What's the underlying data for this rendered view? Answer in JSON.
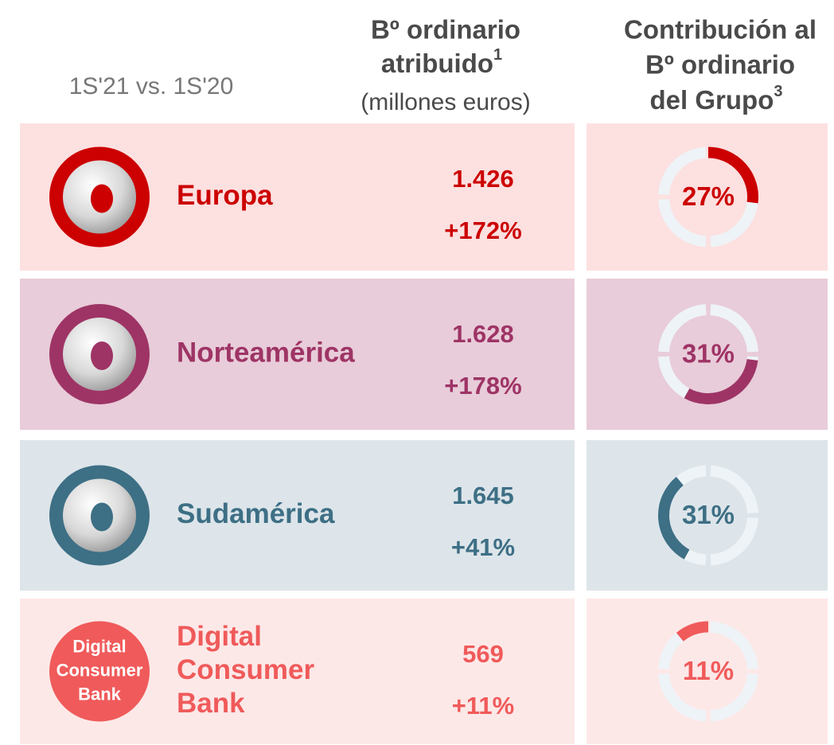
{
  "header": {
    "period": "1S'21 vs. 1S'20",
    "col1": {
      "line1": "Bº ordinario",
      "line2": "atribuido",
      "sup": "1",
      "unit": "(millones euros)"
    },
    "col2": {
      "line1": "Contribución al",
      "line2": "Bº ordinario",
      "line3": "del Grupo",
      "sup": "3"
    }
  },
  "rows": [
    {
      "name": [
        "Europa"
      ],
      "profit": "1.426",
      "change": "+172%",
      "contribution": {
        "value": 27,
        "label": "27%"
      },
      "color": "#cc0000",
      "background": "#fde0e0"
    },
    {
      "name": [
        "Norteamérica"
      ],
      "profit": "1.628",
      "change": "+178%",
      "contribution": {
        "value": 31,
        "label": "31%"
      },
      "color": "#9e3465",
      "background": "#e8ccd9"
    },
    {
      "name": [
        "Sudamérica"
      ],
      "profit": "1.645",
      "change": "+41%",
      "contribution": {
        "value": 31,
        "label": "31%"
      },
      "color": "#3d6f85",
      "background": "#dde5ea"
    },
    {
      "name": [
        "Digital",
        "Consumer",
        "Bank"
      ],
      "icon_text": [
        "Digital",
        "Consumer",
        "Bank"
      ],
      "profit": "569",
      "change": "+11%",
      "contribution": {
        "value": 11,
        "label": "11%"
      },
      "color": "#f05a5a",
      "background": "#fde8e8"
    }
  ]
}
